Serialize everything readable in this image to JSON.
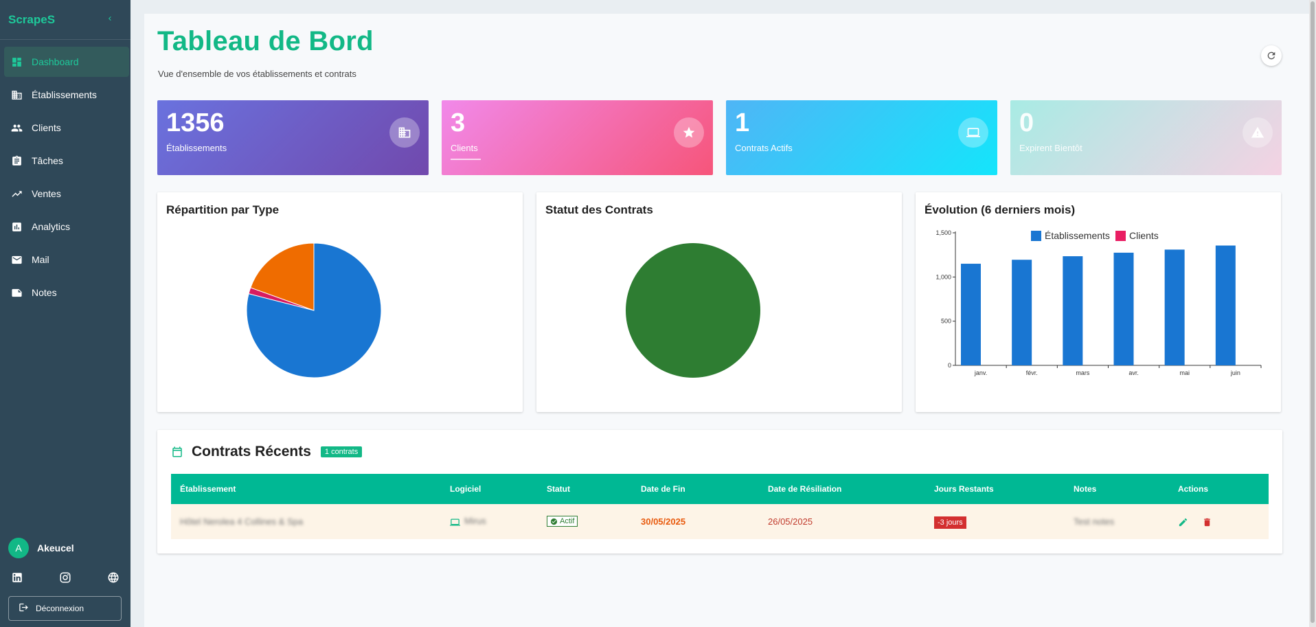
{
  "brand": {
    "name": "ScrapeS"
  },
  "nav": [
    {
      "label": "Dashboard",
      "icon": "dashboard-icon",
      "active": true
    },
    {
      "label": "Établissements",
      "icon": "building-icon"
    },
    {
      "label": "Clients",
      "icon": "people-icon"
    },
    {
      "label": "Tâches",
      "icon": "clipboard-icon"
    },
    {
      "label": "Ventes",
      "icon": "trending-up-icon"
    },
    {
      "label": "Analytics",
      "icon": "analytics-icon"
    },
    {
      "label": "Mail",
      "icon": "mail-icon"
    },
    {
      "label": "Notes",
      "icon": "note-icon"
    }
  ],
  "user": {
    "initial": "A",
    "name": "Akeucel"
  },
  "logout_label": "Déconnexion",
  "page": {
    "title": "Tableau de Bord",
    "subtitle": "Vue d'ensemble de vos établissements et contrats"
  },
  "stats": [
    {
      "value": "1356",
      "label": "Établissements",
      "icon": "building-icon"
    },
    {
      "value": "3",
      "label": "Clients",
      "icon": "star-icon"
    },
    {
      "value": "1",
      "label": "Contrats Actifs",
      "icon": "laptop-icon"
    },
    {
      "value": "0",
      "label": "Expirent Bientôt",
      "icon": "warning-icon"
    }
  ],
  "charts": {
    "pie_title": "Répartition par Type",
    "status_title": "Statut des Contrats",
    "evolution_title": "Évolution (6 derniers mois)"
  },
  "chart_data": [
    {
      "type": "pie",
      "title": "Répartition par Type",
      "values": [
        79,
        1.5,
        19.5
      ],
      "colors": [
        "#1976d2",
        "#d81b60",
        "#ef6c00"
      ]
    },
    {
      "type": "pie",
      "title": "Statut des Contrats",
      "values": [
        100
      ],
      "colors": [
        "#2e7d32"
      ]
    },
    {
      "type": "bar",
      "title": "Évolution (6 derniers mois)",
      "categories": [
        "janv.",
        "févr.",
        "mars",
        "avr.",
        "mai",
        "juin"
      ],
      "series": [
        {
          "name": "Établissements",
          "values": [
            1150,
            1195,
            1235,
            1275,
            1310,
            1356
          ],
          "color": "#1976d2"
        },
        {
          "name": "Clients",
          "values": [
            0,
            0,
            0,
            0,
            0,
            0
          ],
          "color": "#e91e63"
        }
      ],
      "ylim": [
        0,
        1500
      ],
      "yticks": [
        "0",
        "500",
        "1,000",
        "1,500"
      ],
      "legend": "top"
    }
  ],
  "contracts": {
    "title": "Contrats Récents",
    "badge": "1 contrats",
    "columns": [
      "Établissement",
      "Logiciel",
      "Statut",
      "Date de Fin",
      "Date de Résiliation",
      "Jours Restants",
      "Notes",
      "Actions"
    ],
    "rows": [
      {
        "etablissement": "Hôtel Nerolea 4 Collines & Spa",
        "logiciel": "Mirus",
        "statut": "Actif",
        "date_fin": "30/05/2025",
        "date_resiliation": "26/05/2025",
        "jours": "-3 jours",
        "notes": "Test notes"
      }
    ]
  }
}
